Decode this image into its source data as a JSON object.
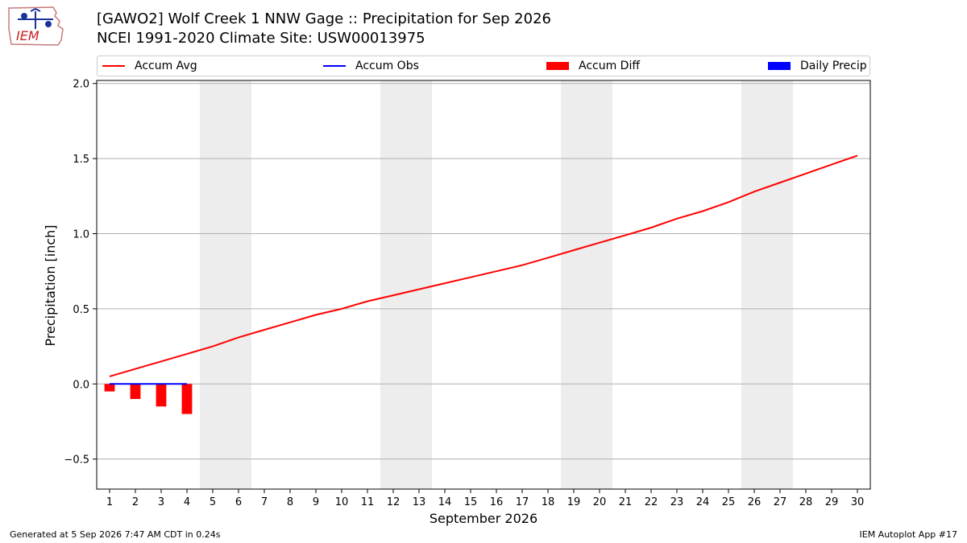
{
  "header": {
    "logo_text": "IEM",
    "title_line1": "[GAWO2] Wolf Creek 1 NNW Gage :: Precipitation for Sep 2026",
    "title_line2": "NCEI 1991-2020 Climate Site: USW00013975"
  },
  "legend": {
    "items": [
      {
        "label": "Accum Avg",
        "kind": "line",
        "color": "#ff0000"
      },
      {
        "label": "Accum Obs",
        "kind": "line",
        "color": "#0000ff"
      },
      {
        "label": "Accum Diff",
        "kind": "box",
        "color": "#ff0000"
      },
      {
        "label": "Daily Precip",
        "kind": "box",
        "color": "#0000ff"
      }
    ]
  },
  "footer": {
    "left": "Generated at 5 Sep 2026 7:47 AM CDT in 0.24s",
    "right": "IEM Autoplot App #17"
  },
  "chart_data": {
    "type": "line",
    "title": "[GAWO2] Wolf Creek 1 NNW Gage :: Precipitation for Sep 2026",
    "subtitle": "NCEI 1991-2020 Climate Site: USW00013975",
    "xlabel": "September 2026",
    "ylabel": "Precipitation [inch]",
    "xlim": [
      0.5,
      30.5
    ],
    "ylim": [
      -0.7,
      2.02
    ],
    "x": [
      1,
      2,
      3,
      4,
      5,
      6,
      7,
      8,
      9,
      10,
      11,
      12,
      13,
      14,
      15,
      16,
      17,
      18,
      19,
      20,
      21,
      22,
      23,
      24,
      25,
      26,
      27,
      28,
      29,
      30
    ],
    "yticks": [
      -0.5,
      0.0,
      0.5,
      1.0,
      1.5,
      2.0
    ],
    "ytick_labels": [
      "−0.5",
      "0.0",
      "0.5",
      "1.0",
      "1.5",
      "2.0"
    ],
    "grid": "y",
    "legend_position": "top",
    "weekend_shading": [
      [
        5,
        6
      ],
      [
        12,
        13
      ],
      [
        19,
        20
      ],
      [
        26,
        27
      ]
    ],
    "shade_color": "#ededed",
    "series": [
      {
        "name": "Accum Avg",
        "kind": "line",
        "color": "#ff0000",
        "x": [
          1,
          2,
          3,
          4,
          5,
          6,
          7,
          8,
          9,
          10,
          11,
          12,
          13,
          14,
          15,
          16,
          17,
          18,
          19,
          20,
          21,
          22,
          23,
          24,
          25,
          26,
          27,
          28,
          29,
          30
        ],
        "values": [
          0.05,
          0.1,
          0.15,
          0.2,
          0.25,
          0.31,
          0.36,
          0.41,
          0.46,
          0.5,
          0.55,
          0.59,
          0.63,
          0.67,
          0.71,
          0.75,
          0.79,
          0.84,
          0.89,
          0.94,
          0.99,
          1.04,
          1.1,
          1.15,
          1.21,
          1.28,
          1.34,
          1.4,
          1.46,
          1.52
        ]
      },
      {
        "name": "Accum Obs",
        "kind": "line",
        "color": "#0000ff",
        "x": [
          1,
          2,
          3,
          4
        ],
        "values": [
          0.0,
          0.0,
          0.0,
          0.0
        ]
      },
      {
        "name": "Accum Diff",
        "kind": "bar",
        "color": "#ff0000",
        "x": [
          1,
          2,
          3,
          4
        ],
        "values": [
          -0.05,
          -0.1,
          -0.15,
          -0.2
        ]
      },
      {
        "name": "Daily Precip",
        "kind": "bar",
        "color": "#0000ff",
        "x": [
          1,
          2,
          3,
          4
        ],
        "values": [
          0.0,
          0.0,
          0.0,
          0.0
        ]
      }
    ]
  }
}
